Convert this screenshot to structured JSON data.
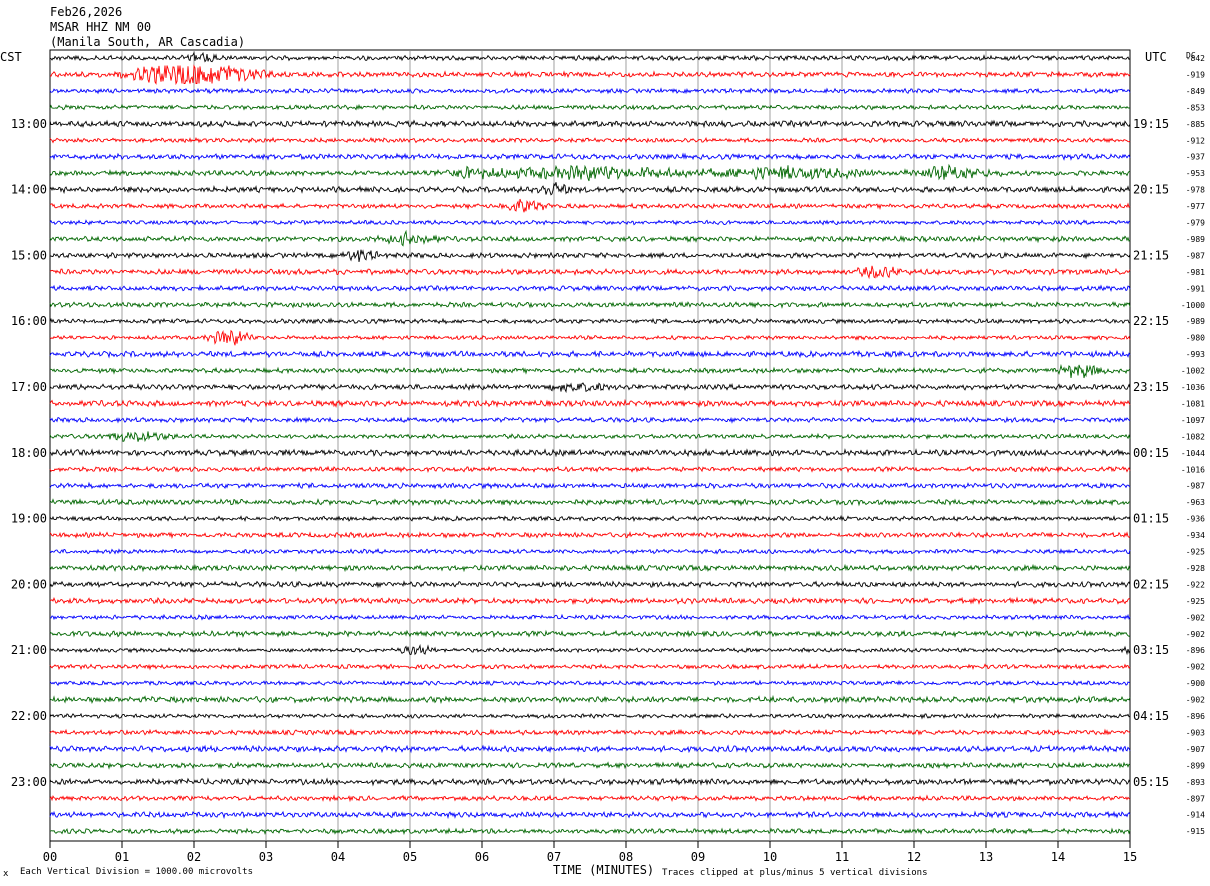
{
  "header": {
    "date": "Feb26,2026",
    "station": "MSAR HHZ NM 00",
    "location": "(Manila South, AR Cascadia)"
  },
  "left_zone_label": "CST",
  "right_zone_label": "UTC",
  "dc_label": "DC",
  "footer": {
    "scale_note": "Each Vertical Division = 1000.00 microvolts",
    "xlabel": "TIME (MINUTES)",
    "clip_note": "Traces clipped at plus/minus 5 vertical divisions",
    "corner_mark": "x"
  },
  "colors": [
    "#000000",
    "#ff0000",
    "#0000ff",
    "#006600"
  ],
  "chart_data": {
    "type": "line",
    "title": "MSAR HHZ NM 00",
    "xlabel": "TIME (MINUTES)",
    "ylabel": "",
    "xlim": [
      0,
      15
    ],
    "x_ticks": [
      "00",
      "01",
      "02",
      "03",
      "04",
      "05",
      "06",
      "07",
      "08",
      "09",
      "10",
      "11",
      "12",
      "13",
      "14",
      "15"
    ],
    "left_time_labels": [
      "13:00",
      "14:00",
      "15:00",
      "16:00",
      "17:00",
      "18:00",
      "19:00",
      "20:00",
      "21:00",
      "22:00",
      "23:00"
    ],
    "right_time_labels": [
      "19:15",
      "20:15",
      "21:15",
      "22:15",
      "23:15",
      "00:15",
      "01:15",
      "02:15",
      "03:15",
      "04:15",
      "05:15"
    ],
    "traces_per_hour": 4,
    "minutes_per_trace": 15,
    "dc_offsets": [
      "-842",
      "-919",
      "-849",
      "-853",
      "-885",
      "-912",
      "-937",
      "-953",
      "-978",
      "-977",
      "-979",
      "-989",
      "-987",
      "-981",
      "-991",
      "-1000",
      "-989",
      "-980",
      "-993",
      "-1002",
      "-1036",
      "-1081",
      "-1097",
      "-1082",
      "-1044",
      "-1016",
      "-987",
      "-963",
      "-936",
      "-934",
      "-925",
      "-928",
      "-922",
      "-925",
      "-902",
      "-902",
      "-896",
      "-902",
      "-900",
      "-902",
      "-896",
      "-903",
      "-907",
      "-899",
      "-893",
      "-897",
      "-914",
      "-915"
    ],
    "bursts": [
      {
        "trace": 1,
        "minute": 2.0,
        "amp": 3.2,
        "width": 1.2
      },
      {
        "trace": 0,
        "minute": 2.1,
        "amp": 1.4,
        "width": 0.3
      },
      {
        "trace": 7,
        "minute": 7.5,
        "amp": 1.6,
        "width": 1.8
      },
      {
        "trace": 7,
        "minute": 10.2,
        "amp": 1.4,
        "width": 1.5
      },
      {
        "trace": 7,
        "minute": 12.5,
        "amp": 1.5,
        "width": 0.8
      },
      {
        "trace": 7,
        "minute": 5.8,
        "amp": 1.1,
        "width": 0.6
      },
      {
        "trace": 8,
        "minute": 7.0,
        "amp": 1.5,
        "width": 0.3
      },
      {
        "trace": 9,
        "minute": 6.6,
        "amp": 1.6,
        "width": 0.4
      },
      {
        "trace": 11,
        "minute": 5.0,
        "amp": 1.3,
        "width": 0.5
      },
      {
        "trace": 12,
        "minute": 4.3,
        "amp": 1.5,
        "width": 0.3
      },
      {
        "trace": 13,
        "minute": 11.5,
        "amp": 1.2,
        "width": 0.4
      },
      {
        "trace": 17,
        "minute": 2.5,
        "amp": 2.0,
        "width": 0.4
      },
      {
        "trace": 19,
        "minute": 14.3,
        "amp": 1.8,
        "width": 0.4
      },
      {
        "trace": 20,
        "minute": 7.3,
        "amp": 1.2,
        "width": 0.5
      },
      {
        "trace": 23,
        "minute": 1.2,
        "amp": 1.1,
        "width": 0.6
      },
      {
        "trace": 36,
        "minute": 5.1,
        "amp": 1.2,
        "width": 0.3
      },
      {
        "trace": 36,
        "minute": 15.0,
        "amp": 1.5,
        "width": 0.1
      }
    ]
  }
}
